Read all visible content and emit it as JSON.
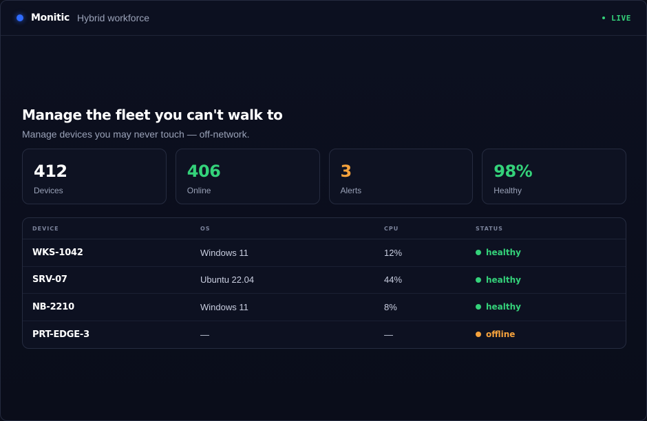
{
  "app": {
    "name": "Monitic",
    "subtitle": "Hybrid workforce",
    "live_label": "LIVE"
  },
  "hero": {
    "title": "Manage the fleet you can't walk to",
    "subtitle": "Manage devices you may never touch — off-network."
  },
  "stats": [
    {
      "value": "412",
      "label": "Devices",
      "color": "#ffffff"
    },
    {
      "value": "406",
      "label": "Online",
      "color": "#34d27a"
    },
    {
      "value": "3",
      "label": "Alerts",
      "color": "#f5a23c"
    },
    {
      "value": "98%",
      "label": "Healthy",
      "color": "#34d27a"
    }
  ],
  "table": {
    "headers": [
      "DEVICE",
      "OS",
      "CPU",
      "STATUS"
    ],
    "rows": [
      {
        "device": "WKS-1042",
        "os": "Windows 11",
        "cpu": "12%",
        "status": "healthy",
        "status_color": "#34d27a"
      },
      {
        "device": "SRV-07",
        "os": "Ubuntu 22.04",
        "cpu": "44%",
        "status": "healthy",
        "status_color": "#34d27a"
      },
      {
        "device": "NB-2210",
        "os": "Windows 11",
        "cpu": "8%",
        "status": "healthy",
        "status_color": "#34d27a"
      },
      {
        "device": "PRT-EDGE-3",
        "os": "—",
        "cpu": "—",
        "status": "offline",
        "status_color": "#f5a23c"
      }
    ]
  },
  "colors": {
    "accent": "#2f6bff",
    "healthy": "#34d27a",
    "warning": "#f5a23c"
  }
}
